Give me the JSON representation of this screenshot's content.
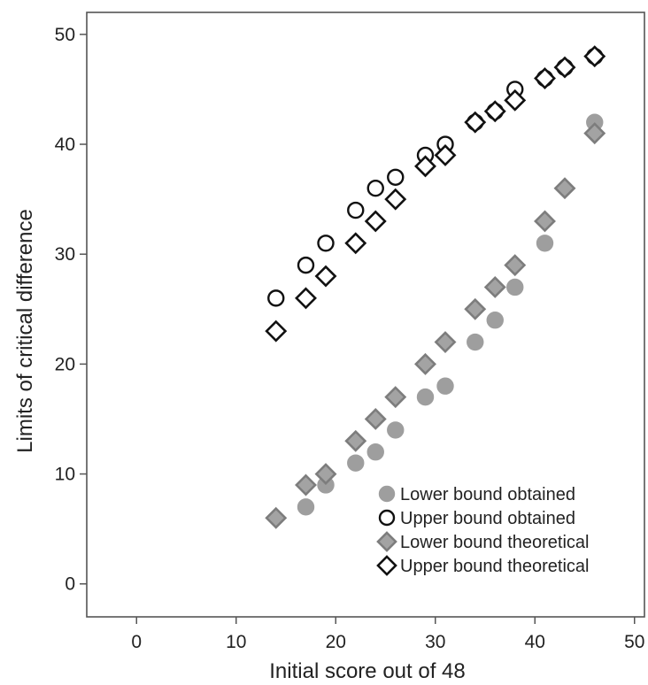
{
  "chart_data": {
    "type": "scatter",
    "title": "",
    "xlabel": "Initial score out of 48",
    "ylabel": "Limits of critical difference",
    "xlim": [
      -5,
      51
    ],
    "ylim": [
      -3,
      52
    ],
    "xticks": [
      0,
      10,
      20,
      30,
      40,
      50
    ],
    "yticks": [
      0,
      10,
      20,
      30,
      40,
      50
    ],
    "grid": false,
    "legend_position": "bottom-right",
    "series": [
      {
        "name": "Lower bound obtained",
        "marker": "circle",
        "fill": "#9e9e9e",
        "stroke": "#9e9e9e",
        "points": [
          [
            17,
            7
          ],
          [
            19,
            9
          ],
          [
            22,
            11
          ],
          [
            24,
            12
          ],
          [
            26,
            14
          ],
          [
            29,
            17
          ],
          [
            31,
            18
          ],
          [
            34,
            22
          ],
          [
            36,
            24
          ],
          [
            38,
            27
          ],
          [
            41,
            31
          ],
          [
            46,
            42
          ]
        ]
      },
      {
        "name": "Upper bound obtained",
        "marker": "circle",
        "fill": "none",
        "stroke": "#111111",
        "points": [
          [
            14,
            26
          ],
          [
            17,
            29
          ],
          [
            19,
            31
          ],
          [
            22,
            34
          ],
          [
            24,
            36
          ],
          [
            26,
            37
          ],
          [
            29,
            39
          ],
          [
            31,
            40
          ],
          [
            34,
            42
          ],
          [
            36,
            43
          ],
          [
            38,
            45
          ],
          [
            41,
            46
          ],
          [
            43,
            47
          ],
          [
            46,
            48
          ]
        ]
      },
      {
        "name": "Lower bound theoretical",
        "marker": "diamond",
        "fill": "#a3a3a3",
        "stroke": "#7d7d7d",
        "points": [
          [
            14,
            6
          ],
          [
            17,
            9
          ],
          [
            19,
            10
          ],
          [
            22,
            13
          ],
          [
            24,
            15
          ],
          [
            26,
            17
          ],
          [
            29,
            20
          ],
          [
            31,
            22
          ],
          [
            34,
            25
          ],
          [
            36,
            27
          ],
          [
            38,
            29
          ],
          [
            41,
            33
          ],
          [
            43,
            36
          ],
          [
            46,
            41
          ]
        ]
      },
      {
        "name": "Upper bound theoretical",
        "marker": "diamond",
        "fill": "#ffffff",
        "stroke": "#111111",
        "points": [
          [
            14,
            23
          ],
          [
            17,
            26
          ],
          [
            19,
            28
          ],
          [
            22,
            31
          ],
          [
            24,
            33
          ],
          [
            26,
            35
          ],
          [
            29,
            38
          ],
          [
            31,
            39
          ],
          [
            34,
            42
          ],
          [
            36,
            43
          ],
          [
            38,
            44
          ],
          [
            41,
            46
          ],
          [
            43,
            47
          ],
          [
            46,
            48
          ]
        ]
      }
    ]
  }
}
